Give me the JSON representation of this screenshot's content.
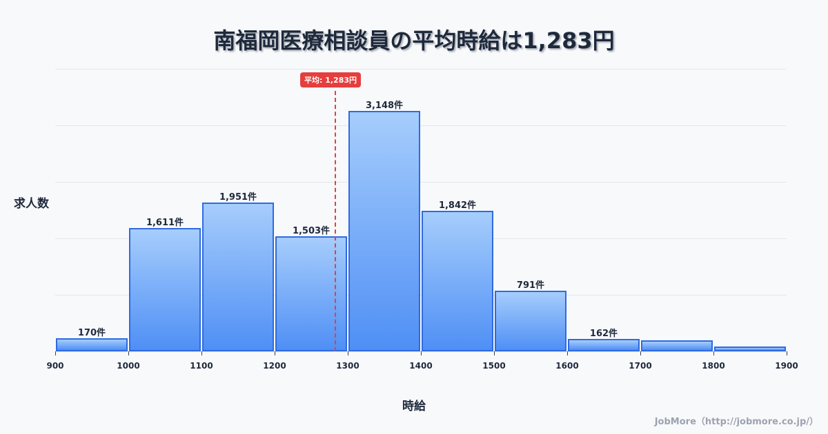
{
  "header": {
    "title": "南福岡医療相談員の平均時給は1,283円"
  },
  "axes": {
    "ylabel": "求人数",
    "xlabel": "時給"
  },
  "average": {
    "label": "平均: 1,283円",
    "value": 1283,
    "color": "#e53e3e"
  },
  "credit": "JobMore（http://jobmore.co.jp/）",
  "colors": {
    "bar_border": "#2f6ae0",
    "bar_top": "#a6cdfc",
    "bar_bottom": "#4f8ff5",
    "average_line": "#e53e3e"
  },
  "chart_data": {
    "type": "bar",
    "title": "南福岡医療相談員の平均時給は1,283円",
    "xlabel": "時給",
    "ylabel": "求人数",
    "categories": [
      "900-1000",
      "1000-1100",
      "1100-1200",
      "1200-1300",
      "1300-1400",
      "1400-1500",
      "1500-1600",
      "1600-1700",
      "1700-1800",
      "1800-1900"
    ],
    "values": [
      170,
      1611,
      1951,
      1503,
      3148,
      1842,
      791,
      162,
      145,
      63
    ],
    "labels": [
      "170件",
      "1,611件",
      "1,951件",
      "1,503件",
      "3,148件",
      "1,842件",
      "791件",
      "162件",
      "",
      ""
    ],
    "x_ticks": [
      "900",
      "1000",
      "1100",
      "1200",
      "1300",
      "1400",
      "1500",
      "1600",
      "1700",
      "1800",
      "1900"
    ],
    "ylim": [
      0,
      3700
    ],
    "grid": true,
    "annotations": [
      {
        "type": "vline",
        "x": 1283,
        "label": "平均: 1,283円"
      }
    ]
  }
}
